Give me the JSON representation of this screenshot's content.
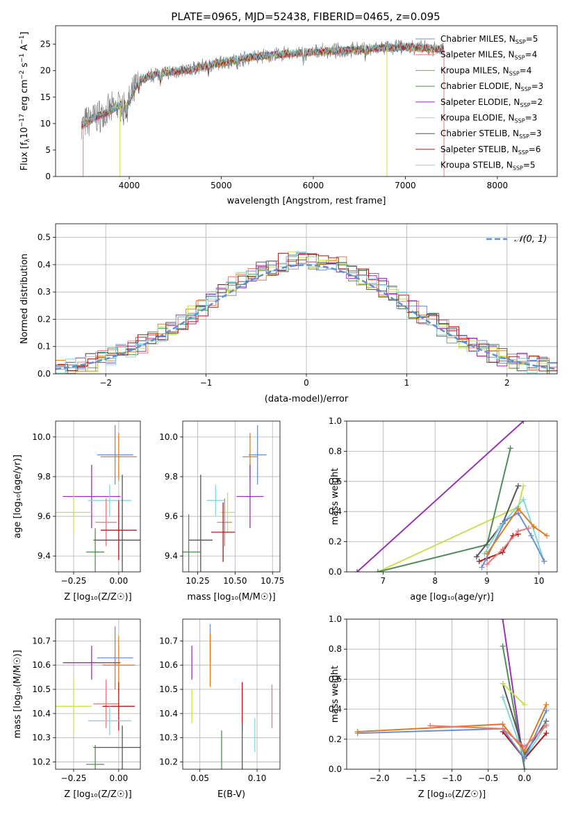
{
  "title": "PLATE=0965, MJD=52438, FIBERID=0465, z=0.095",
  "colors": {
    "chabrier_miles": "#6b8fd6",
    "salpeter_miles": "#e8797a",
    "kroupa_miles": "#e07b1c",
    "chabrier_elodie": "#4f8f55",
    "salpeter_elodie": "#9b2fb8",
    "kroupa_elodie": "#c8e04a",
    "chabrier_stelib": "#555555",
    "salpeter_stelib": "#b01818",
    "kroupa_stelib": "#7fd8e0",
    "normal_curve": "#5b8fd6",
    "data_spectrum": "#808080"
  },
  "chart_data": [
    {
      "id": "spectrum",
      "type": "line",
      "xlabel": "wavelength [Angstrom, rest frame]",
      "ylabel": "Flux [f_λ 10^-17 erg cm^-2 s^-1 A^-1]",
      "xlim": [
        3200,
        8650
      ],
      "ylim": [
        0,
        28.5
      ],
      "xticks": [
        4000,
        5000,
        6000,
        7000,
        8000
      ],
      "yticks": [
        0,
        5,
        10,
        15,
        20,
        25
      ],
      "legend_position": "top-right",
      "legend": [
        {
          "key": "chabrier_miles",
          "label": "Chabrier MILES, N",
          "sub": "SSP",
          "suffix": "=5"
        },
        {
          "key": "salpeter_miles",
          "label": "Salpeter MILES, N",
          "sub": "SSP",
          "suffix": "=4"
        },
        {
          "key": "kroupa_miles",
          "label": "Kroupa MILES, N",
          "sub": "SSP",
          "suffix": "=4"
        },
        {
          "key": "chabrier_elodie",
          "label": "Chabrier ELODIE, N",
          "sub": "SSP",
          "suffix": "=3"
        },
        {
          "key": "salpeter_elodie",
          "label": "Salpeter ELODIE, N",
          "sub": "SSP",
          "suffix": "=2"
        },
        {
          "key": "kroupa_elodie",
          "label": "Kroupa ELODIE, N",
          "sub": "SSP",
          "suffix": "=3"
        },
        {
          "key": "chabrier_stelib",
          "label": "Chabrier STELIB, N",
          "sub": "SSP",
          "suffix": "=3"
        },
        {
          "key": "salpeter_stelib",
          "label": "Salpeter STELIB, N",
          "sub": "SSP",
          "suffix": "=6"
        },
        {
          "key": "kroupa_stelib",
          "label": "Kroupa STELIB, N",
          "sub": "SSP",
          "suffix": "=5"
        }
      ],
      "continuum": [
        [
          3480,
          9.5
        ],
        [
          3600,
          11
        ],
        [
          3750,
          12
        ],
        [
          3900,
          13.5
        ],
        [
          4000,
          14
        ],
        [
          4100,
          18
        ],
        [
          4300,
          19.5
        ],
        [
          4600,
          20
        ],
        [
          5000,
          21.5
        ],
        [
          5300,
          22.5
        ],
        [
          5600,
          23
        ],
        [
          6000,
          23.5
        ],
        [
          6500,
          24
        ],
        [
          7000,
          24.5
        ],
        [
          7400,
          24
        ]
      ],
      "model_range": [
        3480,
        7420
      ],
      "data_range": [
        3480,
        7420
      ]
    },
    {
      "id": "residuals",
      "type": "histogram",
      "xlabel": "(data-model)/error",
      "ylabel": "Normed distribution",
      "xlim": [
        -2.5,
        2.5
      ],
      "ylim": [
        0,
        0.55
      ],
      "xticks": [
        -2,
        -1,
        0,
        1,
        2
      ],
      "yticks": [
        0.0,
        0.1,
        0.2,
        0.3,
        0.4,
        0.5
      ],
      "legend_position": "top-right",
      "curve_label": "𝒩(0, 1)",
      "bin_width": 0.1
    },
    {
      "id": "z-age",
      "type": "scatter",
      "xlabel": "Z [log₁₀(Z/Z☉)]",
      "ylabel": "age  [log₁₀(age/yr)]",
      "xlim": [
        -0.35,
        0.12
      ],
      "ylim": [
        9.32,
        10.08
      ],
      "xticks": [
        -0.25,
        0.0
      ],
      "xticklabels": [
        "−0.25",
        "0.00"
      ],
      "yticks": [
        9.4,
        9.6,
        9.8,
        10.0
      ],
      "points": [
        {
          "key": "chabrier_miles",
          "x": -0.02,
          "xerr": 0.1,
          "y": 9.91,
          "yerr": 0.15
        },
        {
          "key": "kroupa_miles",
          "x": 0.0,
          "xerr": 0.1,
          "y": 9.9,
          "yerr": 0.12
        },
        {
          "key": "salpeter_elodie",
          "x": -0.15,
          "xerr": 0.16,
          "y": 9.7,
          "yerr": 0.16
        },
        {
          "key": "kroupa_stelib",
          "x": -0.05,
          "xerr": 0.12,
          "y": 9.68,
          "yerr": 0.08
        },
        {
          "key": "kroupa_elodie",
          "x": -0.25,
          "xerr": 0.1,
          "y": 9.62,
          "yerr": 0.1
        },
        {
          "key": "salpeter_miles",
          "x": -0.07,
          "xerr": 0.06,
          "y": 9.57,
          "yerr": 0.12
        },
        {
          "key": "salpeter_stelib",
          "x": 0.0,
          "xerr": 0.1,
          "y": 9.53,
          "yerr": 0.15
        },
        {
          "key": "chabrier_stelib",
          "x": 0.02,
          "xerr": 0.16,
          "y": 9.48,
          "yerr": 0.33
        },
        {
          "key": "chabrier_elodie",
          "x": -0.13,
          "xerr": 0.05,
          "y": 9.42,
          "yerr": 0.12
        }
      ]
    },
    {
      "id": "mass-age",
      "type": "scatter",
      "xlabel": "mass [log₁₀(M/M☉)]",
      "ylabel": "",
      "xlim": [
        10.15,
        10.8
      ],
      "ylim": [
        9.32,
        10.08
      ],
      "xticks": [
        10.25,
        10.5,
        10.75
      ],
      "xticklabels": [
        "10.25",
        "10.50",
        "10.75"
      ],
      "yticks": [
        9.4,
        9.6,
        9.8,
        10.0
      ],
      "points": [
        {
          "key": "chabrier_miles",
          "x": 10.65,
          "xerr": 0.06,
          "y": 9.91,
          "yerr": 0.15
        },
        {
          "key": "kroupa_miles",
          "x": 10.6,
          "xerr": 0.05,
          "y": 9.9,
          "yerr": 0.12
        },
        {
          "key": "salpeter_elodie",
          "x": 10.6,
          "xerr": 0.09,
          "y": 9.7,
          "yerr": 0.16
        },
        {
          "key": "kroupa_stelib",
          "x": 10.37,
          "xerr": 0.06,
          "y": 9.68,
          "yerr": 0.08
        },
        {
          "key": "kroupa_elodie",
          "x": 10.45,
          "xerr": 0.05,
          "y": 9.62,
          "yerr": 0.1
        },
        {
          "key": "salpeter_miles",
          "x": 10.43,
          "xerr": 0.05,
          "y": 9.57,
          "yerr": 0.12
        },
        {
          "key": "salpeter_stelib",
          "x": 10.42,
          "xerr": 0.08,
          "y": 9.52,
          "yerr": 0.15
        },
        {
          "key": "chabrier_stelib",
          "x": 10.27,
          "xerr": 0.08,
          "y": 9.48,
          "yerr": 0.33
        },
        {
          "key": "chabrier_elodie",
          "x": 10.19,
          "xerr": 0.08,
          "y": 9.42,
          "yerr": 0.19
        }
      ]
    },
    {
      "id": "age-weight",
      "type": "line",
      "xlabel": "age  [log₁₀(age/yr)]",
      "ylabel": "mass weight",
      "xlim": [
        6.3,
        10.35
      ],
      "ylim": [
        0.0,
        1.0
      ],
      "xticks": [
        7,
        8,
        9,
        10
      ],
      "yticks": [
        0.0,
        0.2,
        0.4,
        0.6,
        0.8,
        1.0
      ],
      "series": [
        {
          "key": "salpeter_elodie",
          "x": [
            6.5,
            9.7
          ],
          "y": [
            0.0,
            1.0
          ]
        },
        {
          "key": "kroupa_elodie",
          "x": [
            6.9,
            9.6,
            9.7
          ],
          "y": [
            0.0,
            0.43,
            0.57
          ]
        },
        {
          "key": "chabrier_elodie",
          "x": [
            6.9,
            9.0,
            9.45
          ],
          "y": [
            0.0,
            0.18,
            0.82
          ]
        },
        {
          "key": "chabrier_stelib",
          "x": [
            8.8,
            9.3,
            9.6
          ],
          "y": [
            0.1,
            0.32,
            0.57
          ]
        },
        {
          "key": "salpeter_stelib",
          "x": [
            8.85,
            9.0,
            9.3,
            9.5,
            9.6
          ],
          "y": [
            0.07,
            0.09,
            0.13,
            0.24,
            0.25
          ]
        },
        {
          "key": "kroupa_stelib",
          "x": [
            8.95,
            9.25,
            9.7,
            10.1
          ],
          "y": [
            0.12,
            0.3,
            0.48,
            0.07
          ]
        },
        {
          "key": "chabrier_miles",
          "x": [
            8.9,
            9.35,
            9.6,
            9.85,
            10.1
          ],
          "y": [
            0.03,
            0.34,
            0.39,
            0.24,
            0.07
          ]
        },
        {
          "key": "kroupa_miles",
          "x": [
            9.0,
            9.6,
            9.9,
            10.15
          ],
          "y": [
            0.12,
            0.42,
            0.3,
            0.24
          ]
        },
        {
          "key": "salpeter_miles",
          "x": [
            9.0,
            9.3,
            9.6,
            9.8
          ],
          "y": [
            0.05,
            0.15,
            0.27,
            0.29
          ]
        }
      ]
    },
    {
      "id": "z-mass",
      "type": "scatter",
      "xlabel": "Z [log₁₀(Z/Z☉)]",
      "ylabel": "mass [log₁₀(M/M☉)]",
      "xlim": [
        -0.35,
        0.12
      ],
      "ylim": [
        10.17,
        10.79
      ],
      "xticks": [
        -0.25,
        0.0
      ],
      "xticklabels": [
        "−0.25",
        "0.00"
      ],
      "yticks": [
        10.2,
        10.3,
        10.4,
        10.5,
        10.6,
        10.7
      ],
      "points": [
        {
          "key": "chabrier_miles",
          "x": -0.02,
          "xerr": 0.1,
          "y": 10.63,
          "yerr": 0.13
        },
        {
          "key": "kroupa_miles",
          "x": 0.0,
          "xerr": 0.09,
          "y": 10.6,
          "yerr": 0.12
        },
        {
          "key": "salpeter_elodie",
          "x": -0.15,
          "xerr": 0.16,
          "y": 10.61,
          "yerr": 0.07
        },
        {
          "key": "salpeter_miles",
          "x": -0.07,
          "xerr": 0.07,
          "y": 10.44,
          "yerr": 0.1
        },
        {
          "key": "kroupa_elodie",
          "x": -0.25,
          "xerr": 0.1,
          "y": 10.43,
          "yerr": 0.12
        },
        {
          "key": "salpeter_stelib",
          "x": 0.0,
          "xerr": 0.09,
          "y": 10.43,
          "yerr": 0.1
        },
        {
          "key": "kroupa_stelib",
          "x": -0.05,
          "xerr": 0.12,
          "y": 10.37,
          "yerr": 0.06
        },
        {
          "key": "chabrier_stelib",
          "x": 0.02,
          "xerr": 0.16,
          "y": 10.26,
          "yerr": 0.09
        },
        {
          "key": "chabrier_elodie",
          "x": -0.13,
          "xerr": 0.05,
          "y": 10.19,
          "yerr": 0.08
        }
      ]
    },
    {
      "id": "ebv-mass",
      "type": "scatter",
      "xlabel": "E(B-V)",
      "ylabel": "",
      "xlim": [
        0.035,
        0.12
      ],
      "ylim": [
        10.17,
        10.79
      ],
      "xticks": [
        0.05,
        0.1
      ],
      "xticklabels": [
        "0.05",
        "0.10"
      ],
      "yticks": [
        10.2,
        10.3,
        10.4,
        10.5,
        10.6,
        10.7
      ],
      "points": [
        {
          "key": "chabrier_miles",
          "x": 0.059,
          "xerr": 0,
          "y": 10.69,
          "yerr": 0.08
        },
        {
          "key": "kroupa_miles",
          "x": 0.059,
          "xerr": 0,
          "y": 10.62,
          "yerr": 0.11
        },
        {
          "key": "salpeter_elodie",
          "x": 0.043,
          "xerr": 0,
          "y": 10.61,
          "yerr": 0.07
        },
        {
          "key": "kroupa_elodie",
          "x": 0.043,
          "xerr": 0,
          "y": 10.43,
          "yerr": 0.07
        },
        {
          "key": "salpeter_stelib",
          "x": 0.087,
          "xerr": 0,
          "y": 10.43,
          "yerr": 0.1
        },
        {
          "key": "salpeter_miles",
          "x": 0.113,
          "xerr": 0,
          "y": 10.43,
          "yerr": 0.09
        },
        {
          "key": "kroupa_stelib",
          "x": 0.098,
          "xerr": 0,
          "y": 10.31,
          "yerr": 0.07
        },
        {
          "key": "chabrier_elodie",
          "x": 0.069,
          "xerr": 0,
          "y": 10.25,
          "yerr": 0.08
        },
        {
          "key": "chabrier_stelib",
          "x": 0.087,
          "xerr": 0,
          "y": 10.26,
          "yerr": 0.1
        }
      ]
    },
    {
      "id": "z-weight",
      "type": "line",
      "xlabel": "Z [log₁₀(Z/Z☉)]",
      "ylabel": "mass weight",
      "xlim": [
        -2.45,
        0.45
      ],
      "ylim": [
        0.0,
        1.0
      ],
      "xticks": [
        -2.0,
        -1.5,
        -1.0,
        -0.5,
        0.0
      ],
      "xticklabels": [
        "−2.0",
        "−1.5",
        "−1.0",
        "−0.5",
        "0.0"
      ],
      "yticks": [
        0.0,
        0.2,
        0.4,
        0.6,
        0.8,
        1.0
      ],
      "series": [
        {
          "key": "salpeter_elodie",
          "x": [
            -0.3,
            0.0
          ],
          "y": [
            1.0,
            0.0
          ]
        },
        {
          "key": "chabrier_elodie",
          "x": [
            -0.3,
            0.0
          ],
          "y": [
            0.82,
            0.0
          ]
        },
        {
          "key": "chabrier_stelib",
          "x": [
            -0.3,
            0.0,
            0.3
          ],
          "y": [
            0.57,
            0.1,
            0.32
          ]
        },
        {
          "key": "kroupa_elodie",
          "x": [
            -0.3,
            0.0
          ],
          "y": [
            0.57,
            0.43
          ]
        },
        {
          "key": "kroupa_stelib",
          "x": [
            -0.3,
            0.0,
            0.3
          ],
          "y": [
            0.48,
            0.07,
            0.3
          ]
        },
        {
          "key": "salpeter_stelib",
          "x": [
            -0.3,
            0.0,
            0.3
          ],
          "y": [
            0.25,
            0.07,
            0.24
          ]
        },
        {
          "key": "chabrier_miles",
          "x": [
            -2.3,
            -0.3,
            0.0,
            0.3
          ],
          "y": [
            0.24,
            0.27,
            0.07,
            0.39
          ]
        },
        {
          "key": "kroupa_miles",
          "x": [
            -2.3,
            -0.3,
            0.0,
            0.3
          ],
          "y": [
            0.25,
            0.3,
            0.12,
            0.43
          ]
        },
        {
          "key": "salpeter_miles",
          "x": [
            -1.3,
            -0.3,
            0.0,
            0.3
          ],
          "y": [
            0.29,
            0.27,
            0.15,
            0.29
          ]
        }
      ]
    }
  ]
}
